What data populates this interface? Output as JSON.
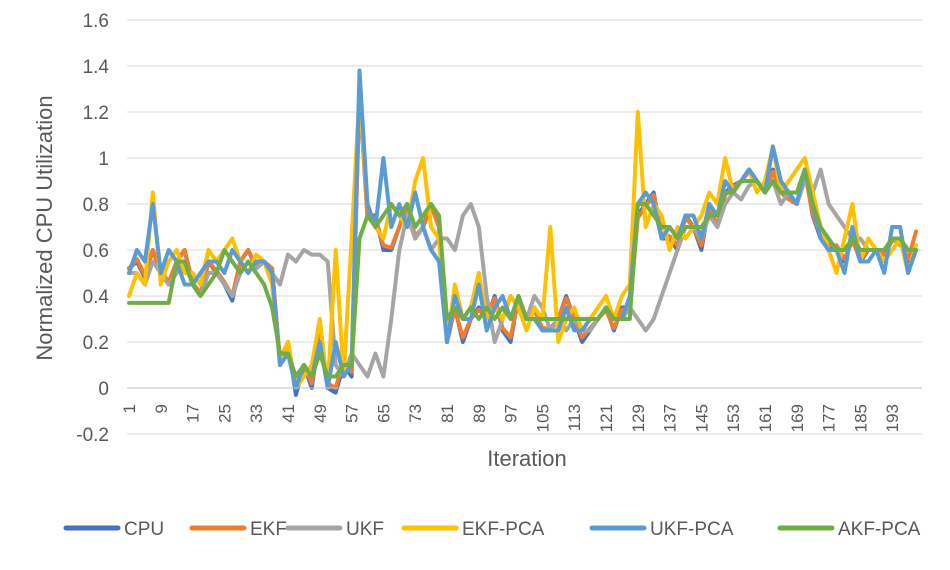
{
  "chart_data": {
    "type": "line",
    "title": "",
    "xlabel": "Iteration",
    "ylabel": "Normalized CPU Utilization",
    "ylim": [
      -0.2,
      1.6
    ],
    "yticks": [
      "-0.2",
      "0",
      "0.2",
      "0.4",
      "0.6",
      "0.8",
      "1",
      "1.2",
      "1.4",
      "1.6"
    ],
    "xticks": [
      "1",
      "9",
      "17",
      "25",
      "33",
      "41",
      "49",
      "57",
      "65",
      "73",
      "81",
      "89",
      "97",
      "105",
      "113",
      "121",
      "129",
      "137",
      "145",
      "153",
      "161",
      "169",
      "177",
      "185",
      "193"
    ],
    "x_range": [
      1,
      200
    ],
    "grid": "horizontal",
    "legend_position": "bottom",
    "sample_every": 2,
    "series": [
      {
        "name": "CPU",
        "color": "#4472C4",
        "values": [
          0.52,
          0.55,
          0.48,
          0.6,
          0.5,
          0.45,
          0.55,
          0.6,
          0.45,
          0.4,
          0.55,
          0.5,
          0.45,
          0.38,
          0.55,
          0.6,
          0.52,
          0.55,
          0.52,
          0.1,
          0.2,
          -0.03,
          0.1,
          0.0,
          0.25,
          0.0,
          -0.02,
          0.1,
          0.05,
          1.3,
          0.75,
          0.75,
          0.6,
          0.6,
          0.7,
          0.8,
          0.65,
          0.7,
          0.8,
          0.7,
          0.2,
          0.35,
          0.2,
          0.3,
          0.35,
          0.3,
          0.4,
          0.25,
          0.2,
          0.4,
          0.3,
          0.35,
          0.25,
          0.25,
          0.3,
          0.4,
          0.3,
          0.2,
          0.25,
          0.3,
          0.35,
          0.25,
          0.35,
          0.35,
          0.75,
          0.8,
          0.85,
          0.65,
          0.65,
          0.6,
          0.75,
          0.7,
          0.6,
          0.8,
          0.7,
          0.85,
          0.88,
          0.9,
          0.95,
          0.9,
          0.85,
          0.95,
          0.85,
          0.82,
          0.8,
          0.95,
          0.75,
          0.65,
          0.6,
          0.62,
          0.55,
          0.65,
          0.55,
          0.6,
          0.6,
          0.58,
          0.65,
          0.65,
          0.55,
          0.6
        ]
      },
      {
        "name": "EKF",
        "color": "#ED7D31",
        "values": [
          0.52,
          0.56,
          0.49,
          0.6,
          0.51,
          0.46,
          0.55,
          0.6,
          0.46,
          0.41,
          0.55,
          0.51,
          0.46,
          0.4,
          0.55,
          0.6,
          0.53,
          0.55,
          0.52,
          0.12,
          0.2,
          0.0,
          0.1,
          0.02,
          0.24,
          0.02,
          0.0,
          0.12,
          0.07,
          1.28,
          0.74,
          0.74,
          0.62,
          0.61,
          0.7,
          0.79,
          0.66,
          0.7,
          0.79,
          0.7,
          0.22,
          0.34,
          0.22,
          0.3,
          0.34,
          0.31,
          0.39,
          0.26,
          0.22,
          0.39,
          0.3,
          0.34,
          0.26,
          0.26,
          0.3,
          0.39,
          0.3,
          0.22,
          0.26,
          0.3,
          0.34,
          0.26,
          0.34,
          0.35,
          0.74,
          0.79,
          0.84,
          0.66,
          0.66,
          0.62,
          0.74,
          0.7,
          0.62,
          0.79,
          0.7,
          0.84,
          0.87,
          0.9,
          0.94,
          0.9,
          0.85,
          0.94,
          0.85,
          0.82,
          0.8,
          0.94,
          0.76,
          0.66,
          0.62,
          0.62,
          0.56,
          0.64,
          0.56,
          0.6,
          0.6,
          0.58,
          0.64,
          0.64,
          0.56,
          0.68
        ]
      },
      {
        "name": "UKF",
        "color": "#A5A5A5",
        "values": [
          0.5,
          0.5,
          0.45,
          0.55,
          0.5,
          0.45,
          0.5,
          0.55,
          0.45,
          0.4,
          0.5,
          0.5,
          0.45,
          0.4,
          0.5,
          0.55,
          0.52,
          0.55,
          0.5,
          0.45,
          0.58,
          0.55,
          0.6,
          0.58,
          0.58,
          0.55,
          0.1,
          0.05,
          0.15,
          0.1,
          0.05,
          0.15,
          0.05,
          0.3,
          0.6,
          0.75,
          0.65,
          0.7,
          0.6,
          0.65,
          0.65,
          0.6,
          0.75,
          0.8,
          0.7,
          0.4,
          0.2,
          0.3,
          0.4,
          0.35,
          0.3,
          0.4,
          0.35,
          0.25,
          0.3,
          0.25,
          0.3,
          0.25,
          0.25,
          0.3,
          0.35,
          0.3,
          0.3,
          0.35,
          0.3,
          0.25,
          0.3,
          0.4,
          0.5,
          0.6,
          0.7,
          0.7,
          0.65,
          0.75,
          0.7,
          0.8,
          0.85,
          0.82,
          0.88,
          0.9,
          0.85,
          0.9,
          0.8,
          0.85,
          0.8,
          0.9,
          0.85,
          0.95,
          0.8,
          0.75,
          0.7,
          0.65,
          0.65,
          0.6,
          0.6,
          0.6,
          0.65,
          0.62,
          0.6,
          0.6
        ]
      },
      {
        "name": "EKF-PCA",
        "color": "#FFC000",
        "values": [
          0.4,
          0.5,
          0.45,
          0.85,
          0.45,
          0.55,
          0.6,
          0.5,
          0.5,
          0.45,
          0.6,
          0.55,
          0.6,
          0.65,
          0.55,
          0.5,
          0.58,
          0.55,
          0.45,
          0.1,
          0.2,
          0.0,
          0.05,
          0.1,
          0.3,
          0.0,
          0.6,
          0.05,
          0.65,
          1.28,
          0.8,
          0.7,
          0.65,
          0.8,
          0.75,
          0.7,
          0.9,
          1.0,
          0.7,
          0.65,
          0.2,
          0.45,
          0.3,
          0.35,
          0.5,
          0.3,
          0.35,
          0.3,
          0.4,
          0.35,
          0.25,
          0.35,
          0.3,
          0.7,
          0.2,
          0.3,
          0.35,
          0.25,
          0.3,
          0.35,
          0.4,
          0.3,
          0.4,
          0.45,
          1.2,
          0.7,
          0.8,
          0.75,
          0.6,
          0.7,
          0.65,
          0.7,
          0.75,
          0.85,
          0.8,
          1.0,
          0.85,
          0.9,
          0.95,
          0.85,
          0.9,
          1.05,
          0.85,
          0.9,
          0.95,
          1.0,
          0.85,
          0.7,
          0.6,
          0.5,
          0.65,
          0.8,
          0.55,
          0.65,
          0.6,
          0.55,
          0.6,
          0.65,
          0.5,
          0.62
        ]
      },
      {
        "name": "UKF-PCA",
        "color": "#5B9BD5",
        "values": [
          0.5,
          0.6,
          0.55,
          0.8,
          0.5,
          0.6,
          0.55,
          0.45,
          0.45,
          0.5,
          0.55,
          0.55,
          0.5,
          0.6,
          0.55,
          0.5,
          0.55,
          0.55,
          0.5,
          0.1,
          0.15,
          0.0,
          0.1,
          0.05,
          0.2,
          0.0,
          0.2,
          0.05,
          0.1,
          1.38,
          0.8,
          0.7,
          1.0,
          0.7,
          0.8,
          0.7,
          0.85,
          0.7,
          0.6,
          0.55,
          0.2,
          0.4,
          0.3,
          0.3,
          0.45,
          0.25,
          0.35,
          0.4,
          0.3,
          0.4,
          0.3,
          0.3,
          0.25,
          0.25,
          0.25,
          0.35,
          0.25,
          0.25,
          0.3,
          0.3,
          0.35,
          0.3,
          0.3,
          0.4,
          0.8,
          0.85,
          0.8,
          0.65,
          0.7,
          0.65,
          0.75,
          0.75,
          0.65,
          0.8,
          0.75,
          0.9,
          0.85,
          0.9,
          0.95,
          0.9,
          0.85,
          1.05,
          0.9,
          0.85,
          0.8,
          0.95,
          0.8,
          0.65,
          0.6,
          0.6,
          0.5,
          0.7,
          0.55,
          0.55,
          0.6,
          0.5,
          0.7,
          0.7,
          0.5,
          0.6
        ]
      },
      {
        "name": "AKF-PCA",
        "color": "#70AD47",
        "values": [
          0.37,
          0.37,
          0.37,
          0.37,
          0.37,
          0.37,
          0.55,
          0.55,
          0.45,
          0.4,
          0.45,
          0.5,
          0.6,
          0.55,
          0.5,
          0.55,
          0.5,
          0.45,
          0.35,
          0.15,
          0.15,
          0.05,
          0.1,
          0.05,
          0.15,
          0.05,
          0.05,
          0.1,
          0.1,
          0.65,
          0.75,
          0.7,
          0.75,
          0.8,
          0.75,
          0.8,
          0.7,
          0.75,
          0.8,
          0.75,
          0.3,
          0.35,
          0.3,
          0.35,
          0.3,
          0.35,
          0.3,
          0.35,
          0.3,
          0.4,
          0.3,
          0.3,
          0.3,
          0.3,
          0.3,
          0.3,
          0.3,
          0.3,
          0.3,
          0.3,
          0.35,
          0.3,
          0.3,
          0.3,
          0.8,
          0.8,
          0.75,
          0.7,
          0.7,
          0.65,
          0.7,
          0.7,
          0.7,
          0.75,
          0.75,
          0.85,
          0.85,
          0.9,
          0.9,
          0.9,
          0.85,
          0.9,
          0.85,
          0.85,
          0.85,
          0.95,
          0.8,
          0.7,
          0.65,
          0.6,
          0.6,
          0.65,
          0.6,
          0.6,
          0.6,
          0.6,
          0.65,
          0.65,
          0.6,
          0.6
        ]
      }
    ]
  }
}
